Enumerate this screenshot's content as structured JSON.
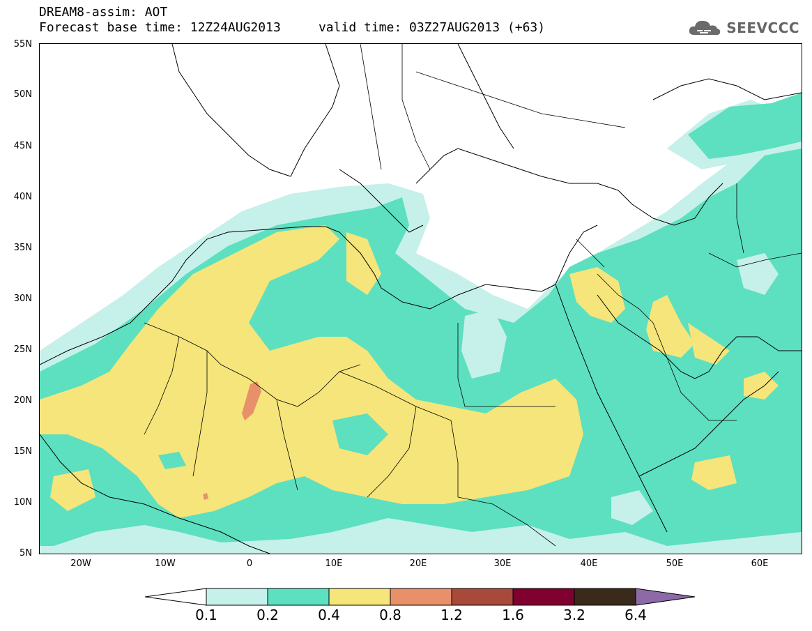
{
  "header": {
    "title_line1": "DREAM8-assim: AOT",
    "title_line2": "Forecast base time: 12Z24AUG2013     valid time: 03Z27AUG2013 (+63)",
    "logo_text": "SEEVCCC"
  },
  "map": {
    "lat_labels": [
      "55N",
      "50N",
      "45N",
      "40N",
      "35N",
      "30N",
      "25N",
      "20N",
      "15N",
      "10N",
      "5N"
    ],
    "lon_labels": [
      "20W",
      "10W",
      "0",
      "10E",
      "20E",
      "30E",
      "40E",
      "50E",
      "60E"
    ]
  },
  "colorbar": {
    "labels": [
      "0.1",
      "0.2",
      "0.4",
      "0.8",
      "1.2",
      "1.6",
      "3.2",
      "6.4"
    ],
    "colors": [
      "#ffffff",
      "#c6f0ea",
      "#5ce0bf",
      "#f5e57a",
      "#e8906a",
      "#a84a3a",
      "#800030",
      "#3a2a1a",
      "#8c6aa8"
    ]
  },
  "colors": {
    "aot_0_1": "#c6f0ea",
    "aot_0_2": "#5ce0bf",
    "aot_0_4": "#f5e57a",
    "aot_0_8": "#e8906a"
  }
}
